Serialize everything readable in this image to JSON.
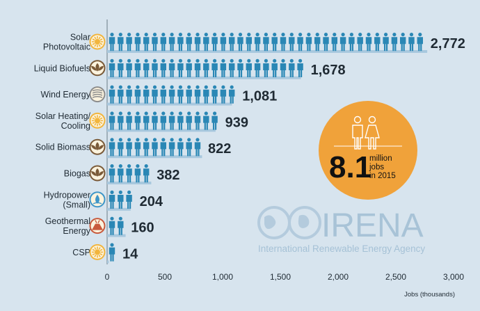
{
  "chart_data": {
    "type": "bar",
    "categories": [
      [
        "Solar",
        "Photovoltaic"
      ],
      [
        "Liquid Biofuels"
      ],
      [
        "Wind Energy"
      ],
      [
        "Solar Heating/",
        "Cooling"
      ],
      [
        "Solid Biomass"
      ],
      [
        "Biogas"
      ],
      [
        "Hydropower",
        "(Small)"
      ],
      [
        "Geothermal",
        "Energy"
      ],
      [
        "CSP"
      ]
    ],
    "category_icons": [
      "sun-icon",
      "leaf-icon",
      "wind-icon",
      "sun-icon",
      "leaf-icon",
      "leaf-icon",
      "water-drop-icon",
      "volcano-icon",
      "sun-icon"
    ],
    "values": [
      2772,
      1678,
      1081,
      939,
      822,
      382,
      204,
      160,
      14
    ],
    "value_labels": [
      "2,772",
      "1,678",
      "1,081",
      "939",
      "822",
      "382",
      "204",
      "160",
      "14"
    ],
    "xlim": [
      0,
      3000
    ],
    "xticks": [
      0,
      500,
      1000,
      1500,
      2000,
      2500,
      3000
    ],
    "xtick_labels": [
      "0",
      "500",
      "1,000",
      "1,500",
      "2,000",
      "2,500",
      "3,000"
    ],
    "xlabel": "Jobs (thousands)",
    "grid": false,
    "mark": "pictogram-person"
  },
  "callout": {
    "big_number": "8.1",
    "text_lines": [
      "million",
      "jobs",
      "in 2015"
    ],
    "icon": "people-icon"
  },
  "watermark": {
    "name": "IRENA",
    "subtitle": "International Renewable Energy Agency"
  },
  "colors": {
    "background": "#d7e4ee",
    "person": "#2a87b5",
    "bar_shadow": "#a8c8de",
    "callout": "#f0a23a",
    "sun": "#f2b53d",
    "leaf": "#7a5a38",
    "wind": "#8c8c8c",
    "water": "#3e96c8",
    "volcano": "#c85a3c"
  }
}
